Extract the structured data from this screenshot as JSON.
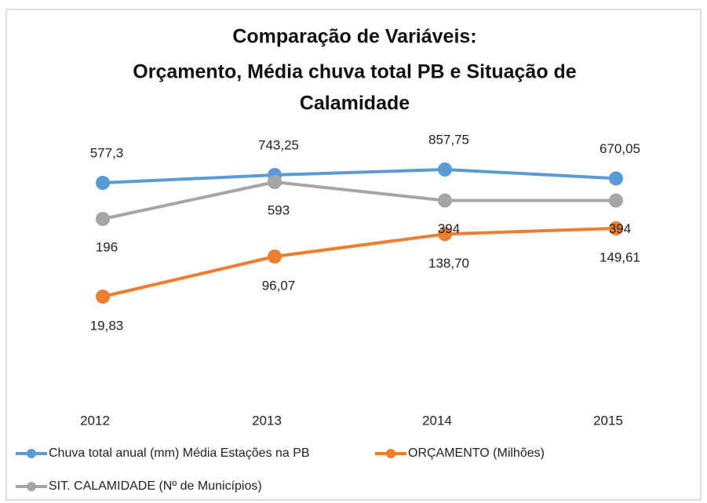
{
  "chart_data": {
    "type": "line",
    "title": [
      "Comparação de Variáveis:",
      "Orçamento, Média chuva total PB e Situação de",
      "Calamidade"
    ],
    "categories": [
      "2012",
      "2013",
      "2014",
      "2015"
    ],
    "series": [
      {
        "name": "Chuva total anual  (mm) Média Estações na PB",
        "color": "#5b9bd5",
        "values": [
          577.3,
          743.25,
          857.75,
          670.05
        ],
        "value_labels": [
          "577,3",
          "743,25",
          "857,75",
          "670,05"
        ]
      },
      {
        "name": "ORÇAMENTO (Milhões)",
        "color": "#ed7d31",
        "values": [
          19.83,
          96.07,
          138.7,
          149.61
        ],
        "value_labels": [
          "19,83",
          "96,07",
          "138,70",
          "149,61"
        ]
      },
      {
        "name": "SIT. CALAMIDADE (Nº de Municípios)",
        "color": "#a5a5a5",
        "values": [
          196,
          593,
          394,
          394
        ]
      }
    ]
  }
}
